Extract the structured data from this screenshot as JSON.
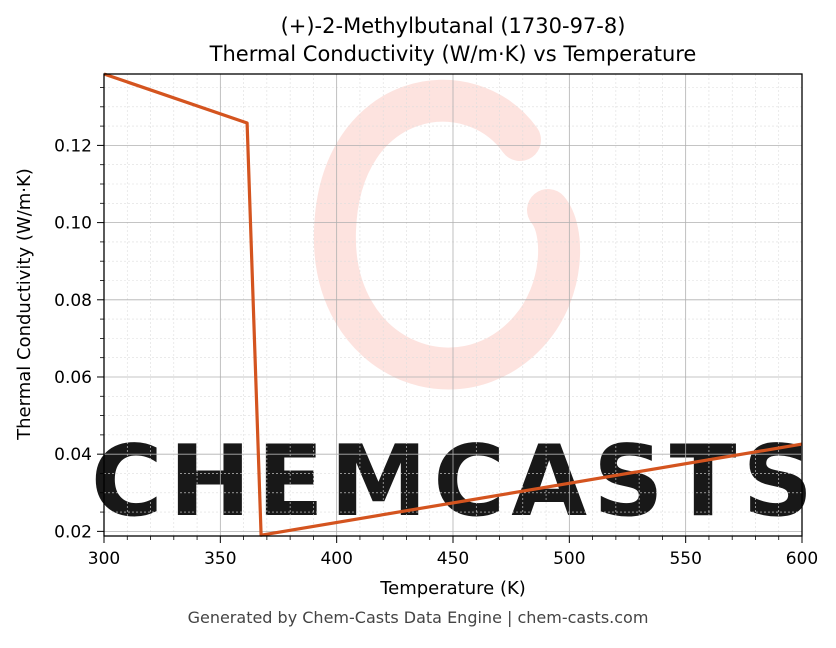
{
  "chart_data": {
    "type": "line",
    "title_line1": "(+)-2-Methylbutanal (1730-97-8)",
    "title_line2": "Thermal Conductivity (W/m·K) vs Temperature",
    "xlabel": "Temperature (K)",
    "ylabel": "Thermal Conductivity (W/m·K)",
    "xlim": [
      300,
      600
    ],
    "ylim": [
      0.0188,
      0.1385
    ],
    "xticks": [
      300,
      350,
      400,
      450,
      500,
      550,
      600
    ],
    "yticks": [
      0.02,
      0.04,
      0.06,
      0.08,
      0.1,
      0.12
    ],
    "ytick_labels": [
      "0.02",
      "0.04",
      "0.06",
      "0.08",
      "0.10",
      "0.12"
    ],
    "grid": true,
    "series": [
      {
        "color": "#d4541f",
        "x": [
          300,
          361.5,
          367.5,
          600
        ],
        "y": [
          0.1385,
          0.1258,
          0.019,
          0.0426
        ]
      }
    ]
  },
  "watermark": {
    "text": "CHEMCASTS",
    "color": "#fde0db"
  },
  "footer": "Generated by Chem-Casts Data Engine | chem-casts.com"
}
